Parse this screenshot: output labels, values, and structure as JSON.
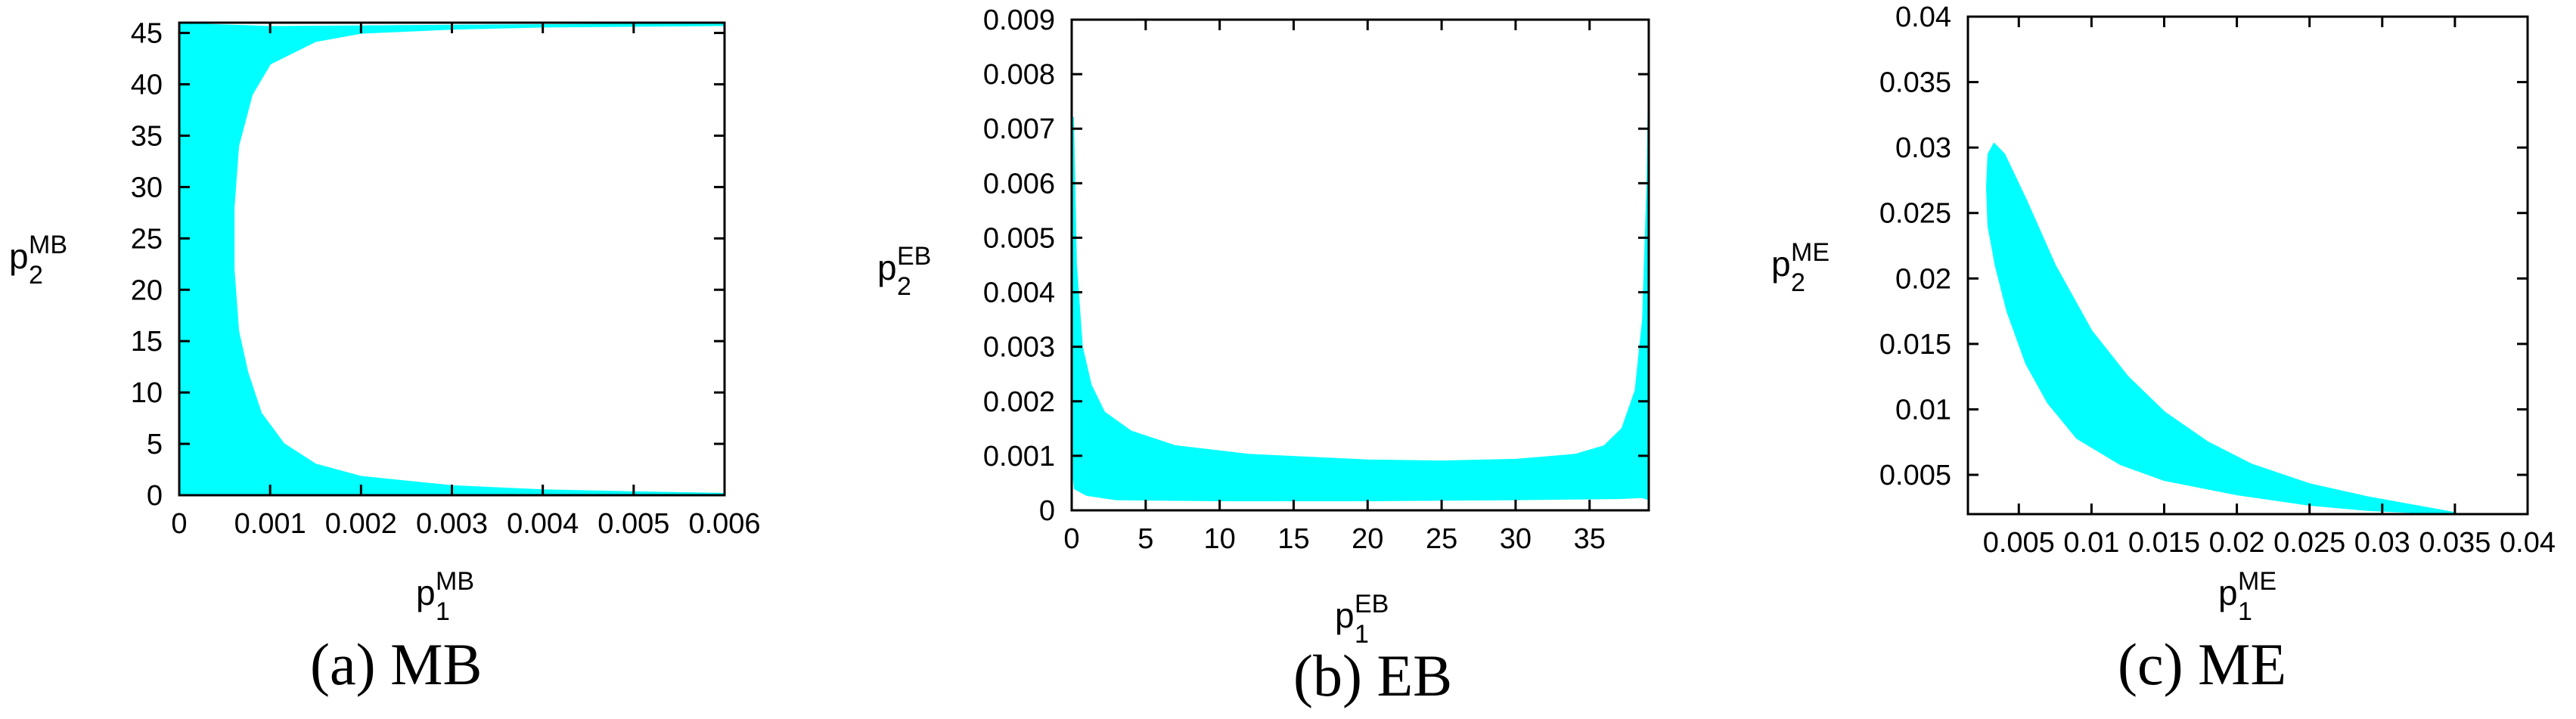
{
  "chart_data": [
    {
      "type": "area",
      "caption": "(a)  MB",
      "xlabel": {
        "base": "p",
        "sub": "1",
        "sup": "MB"
      },
      "ylabel": {
        "base": "p",
        "sub": "2",
        "sup": "MB"
      },
      "xlim": [
        0,
        0.006
      ],
      "ylim": [
        0,
        46
      ],
      "xticks": [
        "0",
        "0.001",
        "0.002",
        "0.003",
        "0.004",
        "0.005",
        "0.006"
      ],
      "xtick_values": [
        0,
        0.001,
        0.002,
        0.003,
        0.004,
        0.005,
        0.006
      ],
      "yticks": [
        "0",
        "5",
        "10",
        "15",
        "20",
        "25",
        "30",
        "35",
        "40",
        "45"
      ],
      "ytick_values": [
        0,
        5,
        10,
        15,
        20,
        25,
        30,
        35,
        40,
        45
      ],
      "fill_color": "#00FFFF",
      "region_boundary": [
        [
          2e-05,
          0.3
        ],
        [
          2e-05,
          45.9
        ],
        [
          0.001,
          45.6
        ],
        [
          0.006,
          45.9
        ],
        [
          0.006,
          45.75
        ],
        [
          0.004,
          45.6
        ],
        [
          0.003,
          45.4
        ],
        [
          0.002,
          45.0
        ],
        [
          0.0015,
          44.2
        ],
        [
          0.001,
          42
        ],
        [
          0.0008,
          39
        ],
        [
          0.00065,
          34
        ],
        [
          0.0006,
          28
        ],
        [
          0.0006,
          22
        ],
        [
          0.00065,
          16
        ],
        [
          0.00075,
          12
        ],
        [
          0.0009,
          8
        ],
        [
          0.00115,
          5
        ],
        [
          0.0015,
          3
        ],
        [
          0.002,
          1.8
        ],
        [
          0.003,
          0.9
        ],
        [
          0.004,
          0.5
        ],
        [
          0.005,
          0.3
        ],
        [
          0.006,
          0.15
        ],
        [
          0.006,
          0.05
        ],
        [
          2e-05,
          0.05
        ]
      ]
    },
    {
      "type": "area",
      "caption": "(b)  EB",
      "xlabel": {
        "base": "p",
        "sub": "1",
        "sup": "EB"
      },
      "ylabel": {
        "base": "p",
        "sub": "2",
        "sup": "EB"
      },
      "xlim": [
        0,
        39
      ],
      "ylim": [
        0,
        0.009
      ],
      "xticks": [
        "0",
        "5",
        "10",
        "15",
        "20",
        "25",
        "30",
        "35"
      ],
      "xtick_values": [
        0,
        5,
        10,
        15,
        20,
        25,
        30,
        35
      ],
      "yticks": [
        "0",
        "0.001",
        "0.002",
        "0.003",
        "0.004",
        "0.005",
        "0.006",
        "0.007",
        "0.008",
        "0.009"
      ],
      "ytick_values": [
        0,
        0.001,
        0.002,
        0.003,
        0.004,
        0.005,
        0.006,
        0.007,
        0.008,
        0.009
      ],
      "fill_color": "#00FFFF",
      "region_boundary": [
        [
          0.1,
          0.0072
        ],
        [
          0.3,
          0.0045
        ],
        [
          0.7,
          0.003
        ],
        [
          1.3,
          0.0023
        ],
        [
          2.2,
          0.0018
        ],
        [
          4,
          0.00145
        ],
        [
          7,
          0.00118
        ],
        [
          12,
          0.00102
        ],
        [
          20,
          0.00092
        ],
        [
          25,
          0.0009
        ],
        [
          30,
          0.00093
        ],
        [
          34,
          0.00102
        ],
        [
          36,
          0.00118
        ],
        [
          37.2,
          0.0015
        ],
        [
          38.1,
          0.0022
        ],
        [
          38.6,
          0.0035
        ],
        [
          38.9,
          0.006
        ],
        [
          39,
          0.0078
        ],
        [
          39,
          0.0002
        ],
        [
          38.5,
          0.00024
        ],
        [
          37,
          0.00022
        ],
        [
          30,
          0.0002
        ],
        [
          20,
          0.00018
        ],
        [
          10,
          0.00018
        ],
        [
          3,
          0.0002
        ],
        [
          1,
          0.00028
        ],
        [
          0.2,
          0.0004
        ],
        [
          0.05,
          0.0008
        ],
        [
          0.05,
          0.007
        ]
      ]
    },
    {
      "type": "area",
      "caption": "(c)  ME",
      "xlabel": {
        "base": "p",
        "sub": "1",
        "sup": "ME"
      },
      "ylabel": {
        "base": "p",
        "sub": "2",
        "sup": "ME"
      },
      "xlim": [
        0.0015,
        0.04
      ],
      "ylim": [
        0.002,
        0.04
      ],
      "xticks": [
        "0.005",
        "0.01",
        "0.015",
        "0.02",
        "0.025",
        "0.03",
        "0.035",
        "0.04"
      ],
      "xtick_values": [
        0.005,
        0.01,
        0.015,
        0.02,
        0.025,
        0.03,
        0.035,
        0.04
      ],
      "yticks": [
        "0.005",
        "0.01",
        "0.015",
        "0.02",
        "0.025",
        "0.03",
        "0.035",
        "0.04"
      ],
      "ytick_values": [
        0.005,
        0.01,
        0.015,
        0.02,
        0.025,
        0.03,
        0.035,
        0.04
      ],
      "fill_color": "#00FFFF",
      "region_boundary": [
        [
          0.0028,
          0.027
        ],
        [
          0.0029,
          0.0295
        ],
        [
          0.0033,
          0.0303
        ],
        [
          0.004,
          0.0295
        ],
        [
          0.0055,
          0.026
        ],
        [
          0.0075,
          0.021
        ],
        [
          0.01,
          0.016
        ],
        [
          0.0125,
          0.0125
        ],
        [
          0.015,
          0.0098
        ],
        [
          0.018,
          0.0075
        ],
        [
          0.021,
          0.0058
        ],
        [
          0.025,
          0.0043
        ],
        [
          0.029,
          0.0033
        ],
        [
          0.033,
          0.0025
        ],
        [
          0.035,
          0.0021
        ],
        [
          0.033,
          0.0021
        ],
        [
          0.029,
          0.0023
        ],
        [
          0.025,
          0.0027
        ],
        [
          0.02,
          0.0035
        ],
        [
          0.015,
          0.0046
        ],
        [
          0.012,
          0.0058
        ],
        [
          0.009,
          0.0078
        ],
        [
          0.007,
          0.0105
        ],
        [
          0.0055,
          0.0135
        ],
        [
          0.0042,
          0.0175
        ],
        [
          0.0034,
          0.021
        ],
        [
          0.0029,
          0.024
        ]
      ]
    }
  ]
}
